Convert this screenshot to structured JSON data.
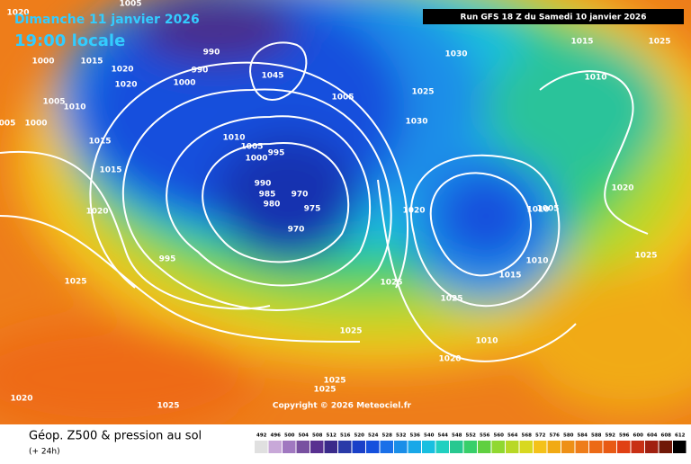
{
  "header": {
    "title": "Dimanche 11 janvier 2026",
    "subtitle": "19:00 locale",
    "run": "Run GFS 18 Z du Samedi 10 janvier 2026"
  },
  "isobar_labels": [
    "1020",
    "1005",
    "1000",
    "1015",
    "1020",
    "1020",
    "990",
    "990",
    "1000",
    "1005",
    "1010",
    "005",
    "1000",
    "1015",
    "1015",
    "1020",
    "1010",
    "1005",
    "995",
    "1000",
    "990",
    "985",
    "980",
    "970",
    "975",
    "970",
    "995",
    "1025",
    "1005",
    "1030",
    "1025",
    "1030",
    "1015",
    "1025",
    "1010",
    "1020",
    "1020",
    "1005",
    "1010",
    "1025",
    "1010",
    "1015",
    "1025",
    "1025",
    "1025",
    "1010",
    "1020",
    "1025",
    "1025",
    "1020",
    "1025",
    "1045"
  ],
  "copyright": "Copyright © 2026 Meteociel.fr",
  "footer": {
    "title": "Géop. Z500 & pression au sol",
    "lead": "(+ 24h)"
  },
  "scale": {
    "values": [
      492,
      496,
      500,
      504,
      508,
      512,
      516,
      520,
      524,
      528,
      532,
      536,
      540,
      544,
      548,
      552,
      556,
      560,
      564,
      568,
      572,
      576,
      580,
      584,
      588,
      592,
      596,
      600,
      604,
      608,
      612
    ]
  }
}
